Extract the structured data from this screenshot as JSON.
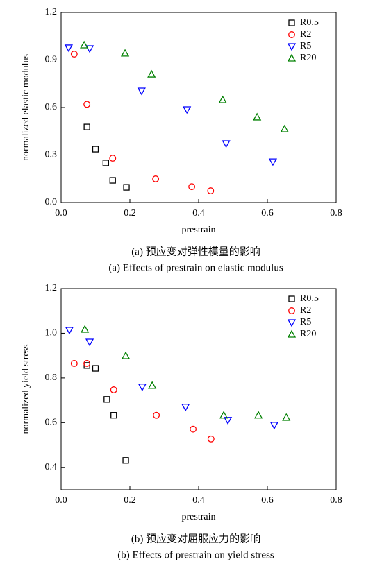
{
  "chart_data": [
    {
      "type": "scatter",
      "xlabel": "prestrain",
      "ylabel": "normalized elastic modulus",
      "caption_cn": "(a) 预应变对弹性模量的影响",
      "caption_en": "(a) Effects of prestrain on elastic modulus",
      "xlim": [
        0,
        0.8
      ],
      "ylim": [
        0,
        1.2
      ],
      "xticks": [
        {
          "value": 0,
          "label": "0.0"
        },
        0.2,
        0.4,
        0.6,
        0.8
      ],
      "yticks": [
        {
          "value": 0,
          "label": "0.0"
        },
        0.3,
        0.6,
        0.9,
        1.2
      ],
      "legend": "upper right",
      "series": [
        {
          "name": "R0.5",
          "color": "#000000",
          "marker": "square",
          "x": [
            0.075,
            0.1,
            0.13,
            0.15,
            0.19
          ],
          "values": [
            0.477,
            0.337,
            0.25,
            0.14,
            0.096
          ]
        },
        {
          "name": "R2",
          "color": "#ff0000",
          "marker": "circle",
          "x": [
            0.038,
            0.075,
            0.15,
            0.275,
            0.38,
            0.435
          ],
          "values": [
            0.937,
            0.62,
            0.28,
            0.149,
            0.1,
            0.074
          ]
        },
        {
          "name": "R5",
          "color": "#0000ff",
          "marker": "triangle-down",
          "x": [
            0.022,
            0.083,
            0.234,
            0.366,
            0.48,
            0.616
          ],
          "values": [
            0.977,
            0.972,
            0.705,
            0.587,
            0.372,
            0.258
          ]
        },
        {
          "name": "R20",
          "color": "#008000",
          "marker": "triangle-up",
          "x": [
            0.067,
            0.186,
            0.263,
            0.47,
            0.57,
            0.65
          ],
          "values": [
            0.994,
            0.942,
            0.81,
            0.648,
            0.539,
            0.464
          ]
        }
      ]
    },
    {
      "type": "scatter",
      "xlabel": "prestrain",
      "ylabel": "normalized yield stress",
      "caption_cn": "(b) 预应变对屈服应力的影响",
      "caption_en": "(b) Effects of prestrain on yield stress",
      "xlim": [
        0,
        0.8
      ],
      "ylim": [
        0.3,
        1.2
      ],
      "xticks": [
        {
          "value": 0,
          "label": "0.0"
        },
        0.2,
        0.4,
        0.6,
        0.8
      ],
      "yticks": [
        0.4,
        0.6,
        0.8,
        {
          "value": 1,
          "label": "1.0"
        },
        1.2
      ],
      "legend": "upper right",
      "series": [
        {
          "name": "R0.5",
          "color": "#000000",
          "marker": "square",
          "x": [
            0.075,
            0.1,
            0.133,
            0.153,
            0.188
          ],
          "values": [
            0.856,
            0.843,
            0.704,
            0.633,
            0.431
          ]
        },
        {
          "name": "R2",
          "color": "#ff0000",
          "marker": "circle",
          "x": [
            0.038,
            0.075,
            0.153,
            0.277,
            0.384,
            0.436
          ],
          "values": [
            0.865,
            0.865,
            0.747,
            0.633,
            0.571,
            0.527
          ]
        },
        {
          "name": "R5",
          "color": "#0000ff",
          "marker": "triangle-down",
          "x": [
            0.024,
            0.083,
            0.236,
            0.362,
            0.485,
            0.62
          ],
          "values": [
            1.014,
            0.961,
            0.76,
            0.67,
            0.611,
            0.589
          ]
        },
        {
          "name": "R20",
          "color": "#008000",
          "marker": "triangle-up",
          "x": [
            0.069,
            0.188,
            0.265,
            0.473,
            0.574,
            0.655
          ],
          "values": [
            1.017,
            0.899,
            0.766,
            0.633,
            0.633,
            0.623
          ]
        }
      ]
    }
  ]
}
